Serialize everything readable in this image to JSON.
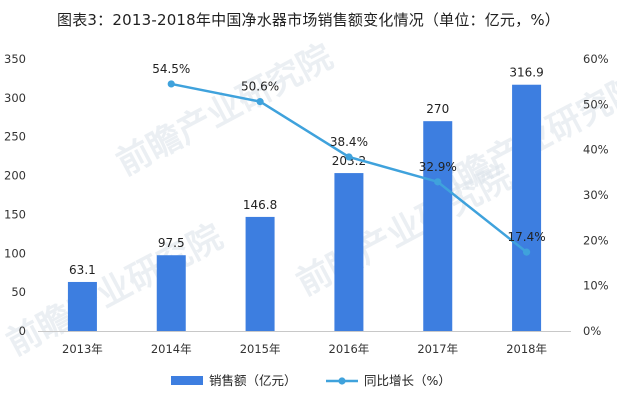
{
  "title": "图表3：2013-2018年中国净水器市场销售额变化情况（单位：亿元，%）",
  "chart_data": {
    "type": "bar",
    "categories": [
      "2013年",
      "2014年",
      "2015年",
      "2016年",
      "2017年",
      "2018年"
    ],
    "series": [
      {
        "name": "销售额（亿元）",
        "type": "bar",
        "axis": "left",
        "values": [
          63.1,
          97.5,
          146.8,
          203.2,
          270,
          316.9
        ],
        "labels": [
          "63.1",
          "97.5",
          "146.8",
          "203.2",
          "270",
          "316.9"
        ],
        "color": "#3d7ee0"
      },
      {
        "name": "同比增长（%）",
        "type": "line",
        "axis": "right",
        "values": [
          null,
          54.5,
          50.6,
          38.4,
          32.9,
          17.4
        ],
        "labels": [
          "",
          "54.5%",
          "50.6%",
          "38.4%",
          "32.9%",
          "17.4%"
        ],
        "color": "#3fa2dc"
      }
    ],
    "y_left": {
      "min": 0,
      "max": 350,
      "ticks": [
        0,
        50,
        100,
        150,
        200,
        250,
        300,
        350
      ],
      "tick_labels": [
        "0",
        "50",
        "100",
        "150",
        "200",
        "250",
        "300",
        "350"
      ]
    },
    "y_right": {
      "min": 0,
      "max": 60,
      "ticks": [
        0,
        10,
        20,
        30,
        40,
        50,
        60
      ],
      "tick_labels": [
        "0%",
        "10%",
        "20%",
        "30%",
        "40%",
        "50%",
        "60%"
      ]
    },
    "grid": false,
    "legend_position": "bottom",
    "watermark": "前瞻产业研究院"
  }
}
